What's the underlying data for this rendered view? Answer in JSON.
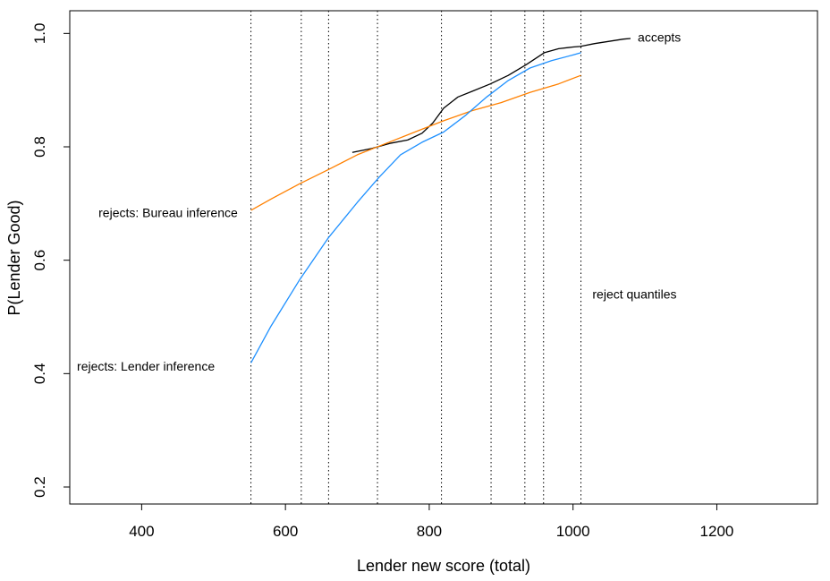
{
  "chart_data": {
    "type": "line",
    "title": "",
    "xlabel": "Lender new score (total)",
    "ylabel": "P(Lender Good)",
    "xlim": [
      300,
      1340
    ],
    "ylim": [
      0.17,
      1.04
    ],
    "x_ticks": [
      400,
      600,
      800,
      1000,
      1200
    ],
    "y_ticks": [
      0.2,
      0.4,
      0.6,
      0.8,
      1.0
    ],
    "x_tick_labels": [
      "400",
      "600",
      "800",
      "1000",
      "1200"
    ],
    "y_tick_labels": [
      "0.2",
      "0.4",
      "0.6",
      "0.8",
      "1.0"
    ],
    "grid": false,
    "reject_quantiles": [
      552,
      622,
      660,
      728,
      817,
      886,
      933,
      959,
      1011
    ],
    "series": [
      {
        "name": "accepts",
        "color": "#000000",
        "x": [
          693,
          720,
          745,
          770,
          790,
          805,
          820,
          840,
          860,
          885,
          910,
          935,
          960,
          980,
          1000,
          1010,
          1030,
          1050,
          1070,
          1080
        ],
        "y": [
          0.79,
          0.797,
          0.806,
          0.812,
          0.824,
          0.842,
          0.868,
          0.888,
          0.898,
          0.911,
          0.926,
          0.945,
          0.966,
          0.973,
          0.976,
          0.977,
          0.982,
          0.986,
          0.99,
          0.991
        ]
      },
      {
        "name": "rejects: Bureau inference",
        "color": "#FF8000",
        "x": [
          552,
          580,
          620,
          660,
          700,
          740,
          780,
          820,
          860,
          900,
          940,
          980,
          1011
        ],
        "y": [
          0.688,
          0.708,
          0.735,
          0.76,
          0.786,
          0.806,
          0.826,
          0.846,
          0.864,
          0.878,
          0.896,
          0.911,
          0.926
        ]
      },
      {
        "name": "rejects: Lender inference",
        "color": "#1E90FF",
        "x": [
          552,
          580,
          620,
          660,
          700,
          730,
          760,
          790,
          820,
          850,
          880,
          910,
          940,
          970,
          1000,
          1011
        ],
        "y": [
          0.419,
          0.484,
          0.566,
          0.64,
          0.702,
          0.746,
          0.786,
          0.808,
          0.826,
          0.855,
          0.888,
          0.917,
          0.939,
          0.952,
          0.962,
          0.966
        ]
      }
    ],
    "annotations": [
      {
        "text": "accepts",
        "x": 1090,
        "y": 0.991
      },
      {
        "text": "rejects: Bureau inference",
        "x": 340,
        "y": 0.682
      },
      {
        "text": "rejects: Lender inference",
        "x": 310,
        "y": 0.411
      },
      {
        "text": "reject quantiles",
        "x": 1027,
        "y": 0.538
      }
    ]
  }
}
